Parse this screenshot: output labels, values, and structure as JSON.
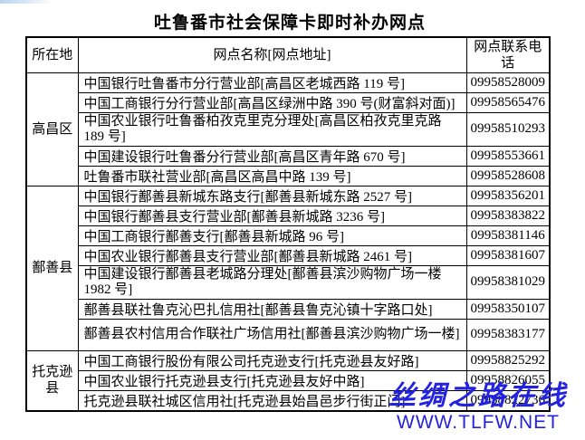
{
  "title": "吐鲁番市社会保障卡即时补办网点",
  "colors": {
    "watermark_blue": "#2323DF",
    "border_black": "#000000",
    "background": "#ffffff"
  },
  "table": {
    "headers": {
      "location": "所在地",
      "name": "网点名称[网点地址]",
      "phone": "网点联系电话"
    },
    "groups": [
      {
        "location": "高昌区",
        "rows": [
          {
            "name": "中国银行吐鲁番市分行营业部[高昌区老城西路 119 号]",
            "phone": "09958528009"
          },
          {
            "name": "中国工商银行分行营业部[高昌区绿洲中路 390 号(财富斜对面)]",
            "phone": "09958565476"
          },
          {
            "name": "中国农业银行吐鲁番柏孜克里克分理处[高昌区柏孜克里克路 189 号]",
            "phone": "09958510293"
          },
          {
            "name": "中国建设银行吐鲁番分行营业部[高昌区青年路 670 号]",
            "phone": "09958553661"
          },
          {
            "name": "吐鲁番市联社营业部[高昌区高昌中路 139 号]",
            "phone": "09958528608"
          }
        ]
      },
      {
        "location": "鄯善县",
        "rows": [
          {
            "name": "中国银行鄯善县新城东路支行[鄯善县新城东路 2527 号]",
            "phone": "09958356201"
          },
          {
            "name": "中国银行鄯善县支行营业部[鄯善县新城路 3236 号]",
            "phone": "09958383822"
          },
          {
            "name": "中国工商银行鄯善支行[鄯善县新城路 96 号]",
            "phone": "09958381146"
          },
          {
            "name": "中国农业银行鄯善县支行营业部[鄯善县新城路 2461 号]",
            "phone": "09958381607"
          },
          {
            "name": "中国建设银行鄯善县老城路分理处[鄯善县滨沙购物广场一楼 1982 号]",
            "phone": "09958381029"
          },
          {
            "name": "鄯善县联社鲁克沁巴扎信用社[鄯善县鲁克沁镇十字路口处]",
            "phone": "09958350107"
          },
          {
            "name": "鄯善县农村信用合作联社广场信用社[鄯善县滨沙购物广场一楼]",
            "phone": "09958383177"
          }
        ]
      },
      {
        "location": "托克逊县",
        "rows": [
          {
            "name": "中国工商银行股份有限公司托克逊支行[托克逊县友好路]",
            "phone": "09958825292"
          },
          {
            "name": "中国农业银行托克逊县支行[托克逊县友好中路]",
            "phone": "09958826055"
          },
          {
            "name": "托克逊县联社城区信用社[托克逊县始昌邑步行街正门]",
            "phone": "09958822736"
          }
        ]
      }
    ]
  },
  "watermark": {
    "brand": "丝绸之路在线",
    "url": "WWW.TLFW.NET"
  }
}
